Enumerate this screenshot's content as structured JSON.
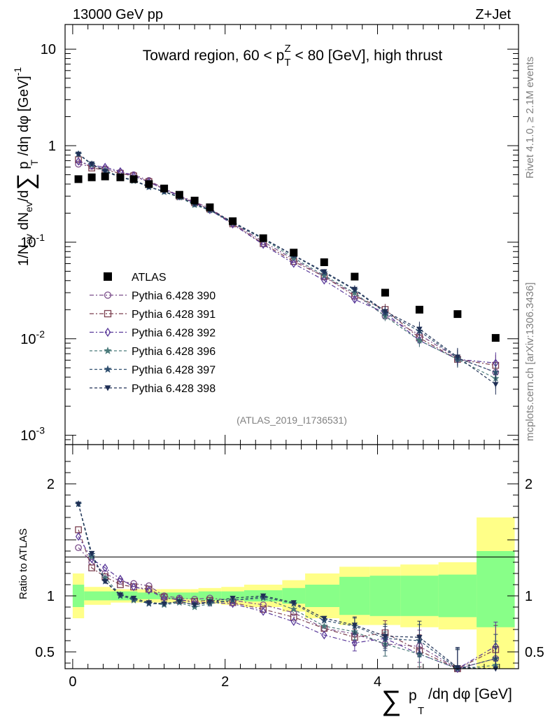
{
  "chart_data": {
    "type": "scatter",
    "header_left": "13000 GeV pp",
    "header_right": "Z+Jet",
    "title": "Toward region, 60 < p_T^Z < 80 [GeV], high thrust",
    "side_label_top": "Rivet 4.1.0, ≥ 2.1M events",
    "side_label_bottom": "mcplots.cern.ch [arXiv:1306.3436]",
    "analysis_label": "(ATLAS_2019_I1736531)",
    "ylabel_main": "1/N_ev dN_ev/d∑p_T/dη dφ [GeV]^-1",
    "ylabel_ratio": "Ratio to ATLAS",
    "xlabel": "∑p_T/dη dφ [GeV]",
    "xlim": [
      -0.1,
      5.85
    ],
    "ylim_main": [
      0.0008,
      18
    ],
    "ylim_ratio": [
      0.35,
      2.35
    ],
    "x_ticks": [
      "0",
      "2",
      "4"
    ],
    "y_ticks_main": [
      "10",
      "1",
      "10^-1",
      "10^-2",
      "10^-3"
    ],
    "y_ticks_ratio": [
      "2",
      "1",
      "0.5"
    ],
    "legend_entries": [
      "ATLAS",
      "Pythia 6.428 390",
      "Pythia 6.428 391",
      "Pythia 6.428 392",
      "Pythia 6.428 396",
      "Pythia 6.428 397",
      "Pythia 6.428 398"
    ],
    "x": [
      0.075,
      0.25,
      0.425,
      0.625,
      0.8,
      1.0,
      1.2,
      1.4,
      1.6,
      1.8,
      2.1,
      2.5,
      2.9,
      3.3,
      3.7,
      4.1,
      4.55,
      5.05,
      5.55
    ],
    "bin_edges": [
      0,
      0.15,
      0.35,
      0.5,
      0.75,
      0.85,
      1.15,
      1.25,
      1.55,
      1.65,
      1.95,
      2.25,
      2.75,
      3.05,
      3.5,
      3.9,
      4.3,
      4.8,
      5.3,
      5.8
    ],
    "data": {
      "name": "ATLAS",
      "values": [
        0.45,
        0.47,
        0.48,
        0.47,
        0.45,
        0.4,
        0.36,
        0.31,
        0.27,
        0.23,
        0.165,
        0.11,
        0.078,
        0.062,
        0.044,
        0.03,
        0.02,
        0.018,
        0.0102
      ]
    },
    "bands": {
      "green_lo": [
        0.9,
        0.96,
        0.96,
        0.96,
        0.96,
        0.97,
        0.97,
        0.97,
        0.97,
        0.96,
        0.96,
        0.95,
        0.93,
        0.9,
        0.83,
        0.82,
        0.82,
        0.81,
        0.72
      ],
      "green_hi": [
        1.1,
        1.04,
        1.04,
        1.04,
        1.04,
        1.03,
        1.03,
        1.03,
        1.03,
        1.04,
        1.04,
        1.05,
        1.07,
        1.1,
        1.17,
        1.18,
        1.18,
        1.19,
        1.4
      ],
      "yellow_lo": [
        0.8,
        0.92,
        0.92,
        0.94,
        0.94,
        0.94,
        0.94,
        0.94,
        0.94,
        0.93,
        0.92,
        0.9,
        0.86,
        0.8,
        0.74,
        0.74,
        0.72,
        0.7,
        0.35
      ],
      "yellow_hi": [
        1.2,
        1.08,
        1.08,
        1.06,
        1.06,
        1.06,
        1.06,
        1.06,
        1.06,
        1.07,
        1.08,
        1.1,
        1.14,
        1.2,
        1.26,
        1.26,
        1.28,
        1.3,
        1.7
      ]
    },
    "series": [
      {
        "name": "Pythia 6.428 390",
        "marker": "circle-open",
        "color": "#7a4d8a",
        "dash": "6,3,2,3",
        "ratio": [
          1.43,
          1.3,
          1.2,
          1.13,
          1.11,
          1.09,
          1.0,
          0.98,
          0.97,
          0.98,
          0.96,
          0.92,
          0.85,
          0.71,
          0.66,
          0.57,
          0.55,
          0.35,
          0.44
        ]
      },
      {
        "name": "Pythia 6.428 391",
        "marker": "square-open",
        "color": "#7b3f4f",
        "dash": "6,3,2,3",
        "ratio": [
          1.59,
          1.25,
          1.17,
          1.1,
          1.08,
          1.06,
          0.99,
          0.96,
          0.95,
          0.96,
          0.94,
          0.88,
          0.81,
          0.71,
          0.63,
          0.67,
          0.51,
          0.34,
          0.52
        ]
      },
      {
        "name": "Pythia 6.428 392",
        "marker": "diamond-open",
        "color": "#5a3a9a",
        "dash": "6,3,2,3",
        "ratio": [
          1.53,
          1.33,
          1.25,
          1.15,
          1.08,
          1.05,
          0.98,
          0.97,
          0.94,
          0.94,
          0.93,
          0.86,
          0.77,
          0.65,
          0.58,
          0.62,
          0.48,
          0.34,
          0.55
        ]
      },
      {
        "name": "Pythia 6.428 396",
        "marker": "star",
        "color": "#4a7a7a",
        "dash": "4,3",
        "ratio": [
          1.82,
          1.35,
          1.16,
          1.01,
          0.96,
          0.94,
          0.92,
          0.94,
          0.9,
          0.93,
          0.96,
          0.98,
          0.88,
          0.73,
          0.68,
          0.57,
          0.48,
          0.34,
          0.38
        ]
      },
      {
        "name": "Pythia 6.428 397",
        "marker": "star",
        "color": "#2e4e6e",
        "dash": "4,3",
        "ratio": [
          1.82,
          1.37,
          1.13,
          1.0,
          0.97,
          0.93,
          0.93,
          0.95,
          0.92,
          0.94,
          0.96,
          0.99,
          0.93,
          0.78,
          0.73,
          0.62,
          0.6,
          0.35,
          0.44
        ]
      },
      {
        "name": "Pythia 6.428 398",
        "marker": "triangle-down",
        "color": "#1f2f55",
        "dash": "4,3",
        "ratio": [
          1.82,
          1.38,
          1.13,
          1.01,
          0.98,
          0.94,
          0.93,
          0.95,
          0.92,
          0.95,
          0.98,
          1.0,
          0.94,
          0.8,
          0.74,
          0.64,
          0.63,
          0.36,
          0.33
        ]
      }
    ]
  }
}
